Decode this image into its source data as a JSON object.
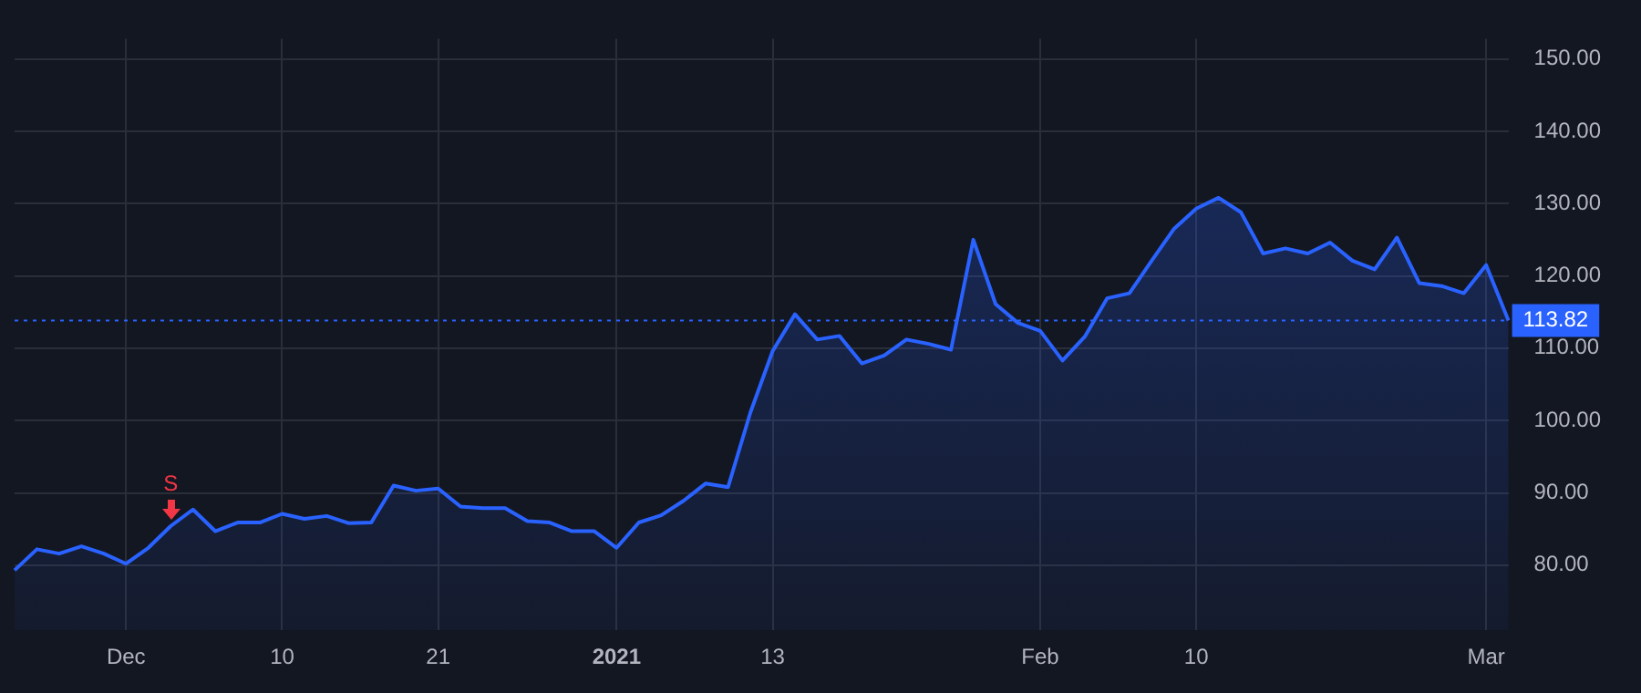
{
  "chart_data": {
    "type": "area",
    "categories": [
      null,
      null,
      null,
      null,
      null,
      "Dec",
      null,
      null,
      null,
      null,
      null,
      null,
      "10",
      null,
      null,
      null,
      null,
      null,
      null,
      "21",
      null,
      null,
      null,
      null,
      null,
      null,
      null,
      "2021",
      null,
      null,
      null,
      null,
      null,
      null,
      "13",
      null,
      null,
      null,
      null,
      null,
      null,
      null,
      null,
      null,
      null,
      null,
      "Feb",
      null,
      null,
      null,
      null,
      null,
      null,
      "10",
      null,
      null,
      null,
      null,
      null,
      null,
      null,
      null,
      null,
      null,
      null,
      null,
      "Mar",
      null
    ],
    "series": [
      {
        "color": "#2962ff",
        "values": [
          79.3,
          82.2,
          81.6,
          82.6,
          81.6,
          80.2,
          82.4,
          85.4,
          87.7,
          84.7,
          85.9,
          85.9,
          87.1,
          86.4,
          86.8,
          85.8,
          85.9,
          91.0,
          90.3,
          90.6,
          88.1,
          87.9,
          87.9,
          86.1,
          85.9,
          84.7,
          84.7,
          82.4,
          85.9,
          86.9,
          88.9,
          91.3,
          90.8,
          101.1,
          109.6,
          114.7,
          111.2,
          111.7,
          107.9,
          109.0,
          111.2,
          110.6,
          109.8,
          125.0,
          116.1,
          113.5,
          112.4,
          108.3,
          111.6,
          116.9,
          117.6,
          122.1,
          126.5,
          129.3,
          130.8,
          128.8,
          123.1,
          123.8,
          123.1,
          124.6,
          122.1,
          120.9,
          125.3,
          119.0,
          118.6,
          117.6,
          121.5,
          113.82
        ]
      }
    ],
    "ylim": [
      71,
      152.8
    ],
    "yticks": [
      {
        "value": 80,
        "label": "80.00"
      },
      {
        "value": 90,
        "label": "90.00"
      },
      {
        "value": 100,
        "label": "100.00"
      },
      {
        "value": 110,
        "label": "110.00"
      },
      {
        "value": 120,
        "label": "120.00"
      },
      {
        "value": 130,
        "label": "130.00"
      },
      {
        "value": 140,
        "label": "140.00"
      },
      {
        "value": 150,
        "label": "150.00"
      }
    ],
    "ref_lines": [
      {
        "axis": "y",
        "value": 113.82,
        "label": "113.82",
        "color": "#2962ff",
        "line_style": "dotted"
      }
    ],
    "annotations": [
      {
        "text": "S",
        "y": 85.4
      }
    ],
    "grid": true,
    "legend": false
  }
}
